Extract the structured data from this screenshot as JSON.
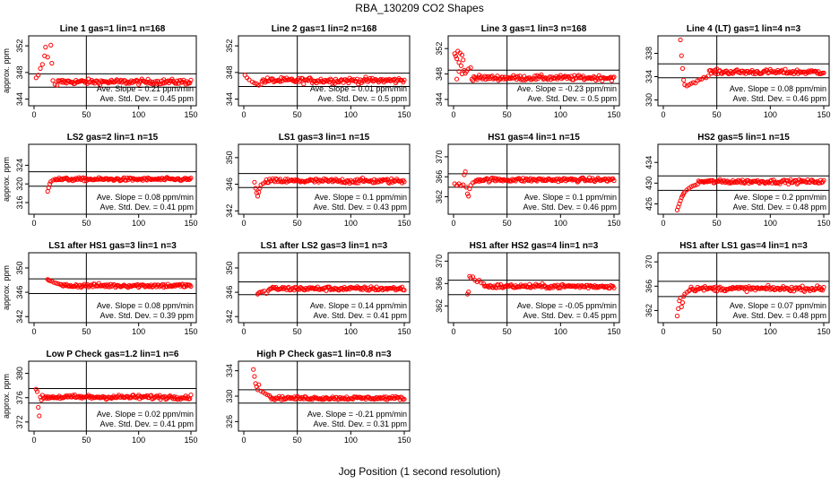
{
  "title": "RBA_130209  CO2 Shapes",
  "xlabel": "Jog Position (1 second resolution)",
  "colors": {
    "points": "#ff0000",
    "axes": "#000000",
    "background": "#ffffff"
  },
  "chart_data": [
    {
      "type": "scatter",
      "title": "Line 1 gas=1 lin=1 n=168",
      "ylabel": "approx. ppm",
      "xlim": [
        0,
        150
      ],
      "xticks": [
        0,
        50,
        100,
        150
      ],
      "ylim": [
        343,
        353.5
      ],
      "yticks": [
        344,
        348,
        352
      ],
      "hlines": [
        347.8,
        345.8
      ],
      "vline": 50,
      "series_level": 346.6,
      "series_noise": 0.45,
      "early_points": [
        [
          2,
          347.2
        ],
        [
          4,
          347.6
        ],
        [
          6,
          348.6
        ],
        [
          8,
          349.2
        ],
        [
          10,
          350.5
        ],
        [
          11,
          351.8
        ],
        [
          13,
          350.3
        ],
        [
          16,
          352.1
        ],
        [
          17,
          349.4
        ],
        [
          18,
          346.8
        ],
        [
          20,
          346.2
        ],
        [
          22,
          346.1
        ]
      ],
      "slope_text": "Ave. Slope =  0.21  ppm/min",
      "sd_text": "Ave. Std. Dev. =  0.45  ppm"
    },
    {
      "type": "scatter",
      "title": "Line 2 gas=1 lin=2 n=168",
      "ylabel": "",
      "xlim": [
        0,
        150
      ],
      "xticks": [
        0,
        50,
        100,
        150
      ],
      "ylim": [
        343,
        353.5
      ],
      "yticks": [
        344,
        348,
        352
      ],
      "hlines": [
        347.9,
        345.9
      ],
      "vline": 50,
      "series_level": 346.8,
      "series_noise": 0.5,
      "early_points": [
        [
          1,
          347.6
        ],
        [
          3,
          347.2
        ],
        [
          5,
          346.9
        ],
        [
          8,
          346.6
        ],
        [
          10,
          346.4
        ],
        [
          12,
          346.3
        ],
        [
          14,
          346.1
        ],
        [
          16,
          346.2
        ]
      ],
      "slope_text": "Ave. Slope =  0.01  ppm/min",
      "sd_text": "Ave. Std. Dev. =  0.5  ppm"
    },
    {
      "type": "scatter",
      "title": "Line 3 gas=1 lin=3 n=168",
      "ylabel": "",
      "xlim": [
        0,
        150
      ],
      "xticks": [
        0,
        50,
        100,
        150
      ],
      "ylim": [
        343,
        354
      ],
      "yticks": [
        344,
        348,
        352
      ],
      "hlines": [
        348.6,
        346.5
      ],
      "vline": 50,
      "series_level": 347.4,
      "series_noise": 0.45,
      "early_points": [
        [
          1,
          351.2
        ],
        [
          2,
          350.8
        ],
        [
          3,
          350.4
        ],
        [
          4,
          351.6
        ],
        [
          5,
          349.8
        ],
        [
          6,
          351.3
        ],
        [
          7,
          349.3
        ],
        [
          8,
          351.0
        ],
        [
          9,
          350.2
        ],
        [
          10,
          348.6
        ],
        [
          11,
          348.1
        ],
        [
          12,
          348.4
        ],
        [
          14,
          348.8
        ],
        [
          16,
          349.0
        ],
        [
          3,
          347.2
        ],
        [
          5,
          348.4
        ],
        [
          8,
          348.0
        ]
      ],
      "slope_text": "Ave. Slope =  -0.23  ppm/min",
      "sd_text": "Ave. Std. Dev. =  0.5  ppm"
    },
    {
      "type": "scatter",
      "title": "Line 4 (LT) gas=1 lin=4 n=3",
      "ylabel": "",
      "xlim": [
        0,
        150
      ],
      "xticks": [
        0,
        50,
        100,
        150
      ],
      "ylim": [
        329,
        341
      ],
      "yticks": [
        330,
        334,
        338
      ],
      "hlines": [
        336.2,
        333.8
      ],
      "vline": 50,
      "series_level": 334.8,
      "series_noise": 0.5,
      "early_points": [
        [
          16,
          340.3
        ],
        [
          17,
          337.6
        ],
        [
          18,
          335.4
        ],
        [
          19,
          333.4
        ],
        [
          20,
          332.6
        ],
        [
          22,
          332.4
        ],
        [
          24,
          332.6
        ],
        [
          26,
          332.8
        ],
        [
          28,
          333.0
        ],
        [
          30,
          332.9
        ],
        [
          32,
          333.3
        ],
        [
          34,
          333.5
        ],
        [
          36,
          333.6
        ],
        [
          38,
          333.9
        ],
        [
          40,
          333.8
        ],
        [
          42,
          334.1
        ]
      ],
      "slope_text": "Ave. Slope =  0.08  ppm/min",
      "sd_text": "Ave. Std. Dev. =  0.46  ppm"
    },
    {
      "type": "scatter",
      "title": "LS2 gas=2 lin=1 n=15",
      "ylabel": "approx. ppm",
      "xlim": [
        0,
        150
      ],
      "xticks": [
        0,
        50,
        100,
        150
      ],
      "ylim": [
        313.5,
        328.5
      ],
      "yticks": [
        316,
        320,
        324
      ],
      "hlines": [
        322.6,
        319.5
      ],
      "vline": 50,
      "series_level": 321.0,
      "series_noise": 0.4,
      "early_points": [
        [
          13,
          318.4
        ],
        [
          14,
          319.2
        ],
        [
          15,
          320.0
        ],
        [
          16,
          320.5
        ],
        [
          18,
          320.8
        ],
        [
          20,
          321.0
        ]
      ],
      "slope_text": "Ave. Slope =  0.08  ppm/min",
      "sd_text": "Ave. Std. Dev. =  0.41  ppm"
    },
    {
      "type": "scatter",
      "title": "LS1 gas=3 lin=1 n=15",
      "ylabel": "",
      "xlim": [
        0,
        150
      ],
      "xticks": [
        0,
        50,
        100,
        150
      ],
      "ylim": [
        341.5,
        352
      ],
      "yticks": [
        342,
        346,
        350
      ],
      "hlines": [
        347.6,
        345.5
      ],
      "vline": 50,
      "series_level": 346.5,
      "series_noise": 0.42,
      "early_points": [
        [
          10,
          346.3
        ],
        [
          11,
          345.4
        ],
        [
          12,
          344.7
        ],
        [
          13,
          344.2
        ],
        [
          14,
          344.8
        ],
        [
          15,
          345.4
        ],
        [
          16,
          345.9
        ],
        [
          18,
          346.1
        ],
        [
          20,
          346.3
        ]
      ],
      "slope_text": "Ave. Slope =  0.1  ppm/min",
      "sd_text": "Ave. Std. Dev. =  0.43  ppm"
    },
    {
      "type": "scatter",
      "title": "HS1 gas=4 lin=1 n=15",
      "ylabel": "",
      "xlim": [
        0,
        150
      ],
      "xticks": [
        0,
        50,
        100,
        150
      ],
      "ylim": [
        358.5,
        372.5
      ],
      "yticks": [
        362,
        366,
        370
      ],
      "hlines": [
        366.6,
        363.9
      ],
      "vline": 50,
      "series_level": 365.4,
      "series_noise": 0.45,
      "early_points": [
        [
          1,
          364.6
        ],
        [
          3,
          364.3
        ],
        [
          5,
          364.6
        ],
        [
          7,
          364.2
        ],
        [
          9,
          364.4
        ],
        [
          10,
          366.4
        ],
        [
          11,
          367.0
        ],
        [
          12,
          363.9
        ],
        [
          13,
          362.6
        ],
        [
          14,
          362.1
        ],
        [
          15,
          363.6
        ],
        [
          16,
          364.3
        ],
        [
          18,
          364.8
        ],
        [
          20,
          365.0
        ]
      ],
      "slope_text": "Ave. Slope =  0.1  ppm/min",
      "sd_text": "Ave. Std. Dev. =  0.46  ppm"
    },
    {
      "type": "scatter",
      "title": "HS2 gas=5 lin=1 n=15",
      "ylabel": "",
      "xlim": [
        0,
        150
      ],
      "xticks": [
        0,
        50,
        100,
        150
      ],
      "ylim": [
        424,
        437.5
      ],
      "yticks": [
        426,
        430,
        434
      ],
      "hlines": [
        431.4,
        428.6
      ],
      "vline": 50,
      "series_level": 430.3,
      "series_noise": 0.45,
      "early_points": [
        [
          13,
          424.8
        ],
        [
          14,
          425.4
        ],
        [
          15,
          426.0
        ],
        [
          16,
          426.6
        ],
        [
          17,
          427.2
        ],
        [
          18,
          427.6
        ],
        [
          19,
          428.0
        ],
        [
          20,
          428.3
        ],
        [
          22,
          428.7
        ],
        [
          24,
          429.0
        ],
        [
          26,
          429.3
        ],
        [
          28,
          429.5
        ],
        [
          30,
          429.6
        ],
        [
          32,
          429.8
        ]
      ],
      "slope_text": "Ave. Slope =  0.2  ppm/min",
      "sd_text": "Ave. Std. Dev. =  0.48  ppm"
    },
    {
      "type": "scatter",
      "title": "LS1 after HS1 gas=3 lin=1 n=3",
      "ylabel": "approx. ppm",
      "xlim": [
        0,
        150
      ],
      "xticks": [
        0,
        50,
        100,
        150
      ],
      "ylim": [
        341,
        352.5
      ],
      "yticks": [
        342,
        346,
        350
      ],
      "hlines": [
        348.2,
        345.8
      ],
      "vline": 50,
      "series_level": 347.1,
      "series_noise": 0.38,
      "early_points": [
        [
          13,
          348.1
        ],
        [
          14,
          348.0
        ],
        [
          15,
          347.9
        ],
        [
          17,
          347.8
        ],
        [
          19,
          347.6
        ],
        [
          21,
          347.5
        ],
        [
          23,
          347.4
        ],
        [
          25,
          347.3
        ]
      ],
      "slope_text": "Ave. Slope =  0.08  ppm/min",
      "sd_text": "Ave. Std. Dev. =  0.39  ppm"
    },
    {
      "type": "scatter",
      "title": "LS1 after LS2 gas=3 lin=1 n=3",
      "ylabel": "",
      "xlim": [
        0,
        150
      ],
      "xticks": [
        0,
        50,
        100,
        150
      ],
      "ylim": [
        341,
        352.5
      ],
      "yticks": [
        342,
        346,
        350
      ],
      "hlines": [
        347.7,
        345.6
      ],
      "vline": 50,
      "series_level": 346.6,
      "series_noise": 0.4,
      "early_points": [
        [
          13,
          345.7
        ],
        [
          14,
          345.9
        ],
        [
          15,
          346.0
        ],
        [
          17,
          346.1
        ],
        [
          19,
          346.2
        ],
        [
          21,
          345.8
        ],
        [
          23,
          346.3
        ]
      ],
      "slope_text": "Ave. Slope =  0.14  ppm/min",
      "sd_text": "Ave. Std. Dev. =  0.41  ppm"
    },
    {
      "type": "scatter",
      "title": "HS1 after HS2 gas=4 lin=1 n=3",
      "ylabel": "",
      "xlim": [
        0,
        150
      ],
      "xticks": [
        0,
        50,
        100,
        150
      ],
      "ylim": [
        359,
        371.5
      ],
      "yticks": [
        362,
        366,
        370
      ],
      "hlines": [
        366.6,
        364.0
      ],
      "vline": 50,
      "series_level": 365.5,
      "series_noise": 0.45,
      "early_points": [
        [
          13,
          364.1
        ],
        [
          14,
          364.5
        ],
        [
          15,
          367.3
        ],
        [
          16,
          367.0
        ],
        [
          18,
          367.2
        ],
        [
          20,
          366.6
        ],
        [
          22,
          366.3
        ],
        [
          24,
          366.6
        ],
        [
          26,
          366.1
        ],
        [
          28,
          366.0
        ]
      ],
      "slope_text": "Ave. Slope =  -0.05  ppm/min",
      "sd_text": "Ave. Std. Dev. =  0.45  ppm"
    },
    {
      "type": "scatter",
      "title": "HS1 after LS1 gas=4 lin=1 n=3",
      "ylabel": "",
      "xlim": [
        0,
        150
      ],
      "xticks": [
        0,
        50,
        100,
        150
      ],
      "ylim": [
        360,
        371.5
      ],
      "yticks": [
        362,
        366,
        370
      ],
      "hlines": [
        366.8,
        364.3
      ],
      "vline": 50,
      "series_level": 365.6,
      "series_noise": 0.45,
      "early_points": [
        [
          13,
          361.1
        ],
        [
          14,
          362.3
        ],
        [
          15,
          363.6
        ],
        [
          16,
          364.1
        ],
        [
          17,
          362.6
        ],
        [
          18,
          363.3
        ],
        [
          19,
          364.3
        ],
        [
          20,
          364.7
        ],
        [
          22,
          365.0
        ],
        [
          24,
          365.2
        ]
      ],
      "slope_text": "Ave. Slope =  0.07  ppm/min",
      "sd_text": "Ave. Std. Dev. =  0.48  ppm"
    },
    {
      "type": "scatter",
      "title": "Low P Check gas=1.2 lin=1 n=6",
      "ylabel": "approx. ppm",
      "xlim": [
        0,
        150
      ],
      "xticks": [
        0,
        50,
        100,
        150
      ],
      "ylim": [
        370.5,
        382
      ],
      "yticks": [
        372,
        376,
        380
      ],
      "hlines": [
        377.5,
        375.1
      ],
      "vline": 50,
      "series_level": 376.1,
      "series_noise": 0.42,
      "early_points": [
        [
          2,
          377.4
        ],
        [
          3,
          377.0
        ],
        [
          4,
          374.4
        ],
        [
          5,
          373.0
        ],
        [
          6,
          376.1
        ],
        [
          7,
          375.6
        ],
        [
          8,
          376.4
        ],
        [
          9,
          375.9
        ],
        [
          10,
          376.0
        ]
      ],
      "slope_text": "Ave. Slope =  0.02  ppm/min",
      "sd_text": "Ave. Std. Dev. =  0.41  ppm"
    },
    {
      "type": "scatter",
      "title": "High P Check gas=1 lin=0.8 n=3",
      "ylabel": "",
      "xlim": [
        0,
        150
      ],
      "xticks": [
        0,
        50,
        100,
        150
      ],
      "ylim": [
        324.5,
        335.5
      ],
      "yticks": [
        326,
        330,
        334
      ],
      "hlines": [
        331.0,
        328.9
      ],
      "vline": 50,
      "series_level": 329.7,
      "series_noise": 0.32,
      "early_points": [
        [
          9,
          334.2
        ],
        [
          10,
          333.1
        ],
        [
          11,
          332.0
        ],
        [
          12,
          331.5
        ],
        [
          13,
          331.0
        ],
        [
          14,
          331.8
        ],
        [
          16,
          330.8
        ],
        [
          18,
          330.6
        ],
        [
          20,
          330.4
        ],
        [
          22,
          330.2
        ],
        [
          24,
          330.1
        ]
      ],
      "slope_text": "Ave. Slope =  -0.21  ppm/min",
      "sd_text": "Ave. Std. Dev. =  0.31  ppm"
    }
  ]
}
